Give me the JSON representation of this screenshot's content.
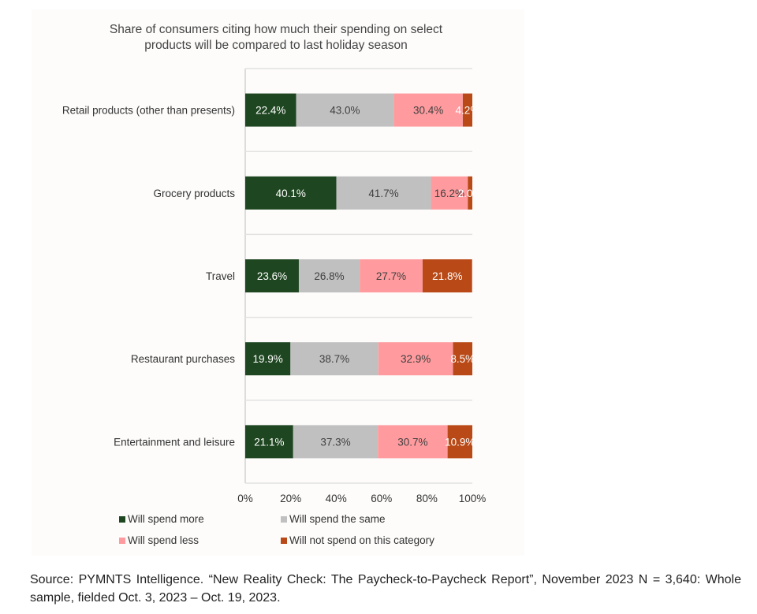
{
  "chart_data": {
    "type": "bar",
    "orientation": "horizontal",
    "stacked": true,
    "title": "Share of consumers citing how much their spending on select products will be compared to last holiday season",
    "title_lines": [
      "Share of consumers citing how much their spending on select",
      "products will be compared to last holiday season"
    ],
    "categories": [
      "Retail products (other than presents)",
      "Grocery products",
      "Travel",
      "Restaurant purchases",
      "Entertainment and leisure"
    ],
    "series": [
      {
        "name": "Will spend more",
        "color": "#1e4620",
        "values": [
          22.4,
          40.1,
          23.6,
          19.9,
          21.1
        ],
        "label_color": "#ffffff"
      },
      {
        "name": "Will spend the same",
        "color": "#c0c0c0",
        "values": [
          43.0,
          41.7,
          26.8,
          38.7,
          37.3
        ],
        "label_color": "#404040"
      },
      {
        "name": "Will spend less",
        "color": "#ff9b9e",
        "values": [
          30.4,
          16.2,
          27.7,
          32.9,
          30.7
        ],
        "label_color": "#404040"
      },
      {
        "name": "Will not spend on this category",
        "color": "#b94a17",
        "values": [
          4.2,
          2.0,
          21.8,
          8.5,
          10.9
        ],
        "label_color": "#ffffff"
      }
    ],
    "xlim": [
      0,
      100
    ],
    "x_ticks": [
      "0%",
      "20%",
      "40%",
      "60%",
      "80%",
      "100%"
    ],
    "xlabel": "",
    "ylabel": "",
    "grid": false,
    "legend_position": "bottom"
  },
  "source_text": "Source: PYMNTS Intelligence. “New Reality Check: The Paycheck-to-Paycheck Report”, November 2023 N = 3,640: Whole sample, fielded Oct. 3, 2023 – Oct. 19, 2023."
}
